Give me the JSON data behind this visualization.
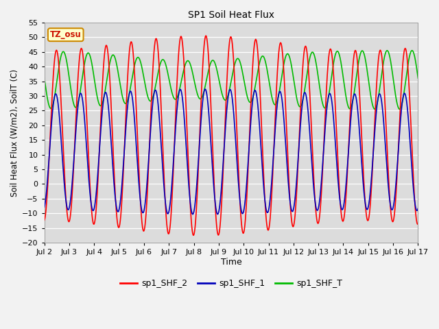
{
  "title": "SP1 Soil Heat Flux",
  "xlabel": "Time",
  "ylabel": "Soil Heat Flux (W/m2), SoilT (C)",
  "xlim_days": [
    2,
    17
  ],
  "ylim": [
    -20,
    55
  ],
  "yticks": [
    -20,
    -15,
    -10,
    -5,
    0,
    5,
    10,
    15,
    20,
    25,
    30,
    35,
    40,
    45,
    50,
    55
  ],
  "xtick_labels": [
    "Jul 2",
    "Jul 3",
    "Jul 4",
    "Jul 5",
    "Jul 6",
    "Jul 7",
    "Jul 8",
    "Jul 9",
    "Jul 10",
    "Jul 11",
    "Jul 12",
    "Jul 13",
    "Jul 14",
    "Jul 15",
    "Jul 16",
    "Jul 17"
  ],
  "xtick_positions": [
    2,
    3,
    4,
    5,
    6,
    7,
    8,
    9,
    10,
    11,
    12,
    13,
    14,
    15,
    16,
    17
  ],
  "color_shf2": "#FF0000",
  "color_shf1": "#0000BB",
  "color_shft": "#00BB00",
  "bg_color": "#DCDCDC",
  "fig_bg_color": "#F2F2F2",
  "legend_labels": [
    "sp1_SHF_2",
    "sp1_SHF_1",
    "sp1_SHF_T"
  ],
  "tz_label": "TZ_osu",
  "tz_bg": "#FFFFCC",
  "tz_border": "#CC8800",
  "linewidth": 1.2,
  "n_points": 5000,
  "period_days": 1.0
}
